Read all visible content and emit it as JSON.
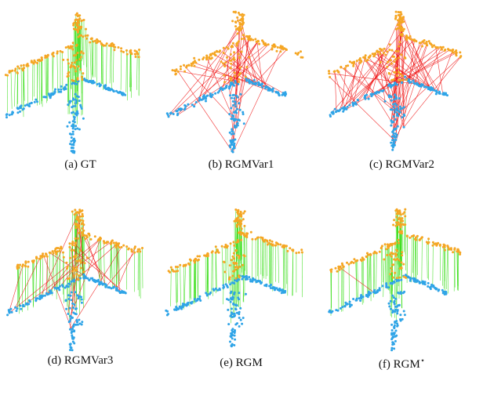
{
  "colors": {
    "source_points": "#f5a623",
    "target_points": "#2fa4e7",
    "correct_match": "#33dd11",
    "wrong_match": "#ee1111"
  },
  "panels": [
    {
      "id": "a",
      "caption": "(a) GT",
      "correct_fraction": 1.0,
      "wrong_fraction": 0.0
    },
    {
      "id": "b",
      "caption": "(b) RGMVar1",
      "correct_fraction": 0.0,
      "wrong_fraction": 0.35
    },
    {
      "id": "c",
      "caption": "(c) RGMVar2",
      "correct_fraction": 0.0,
      "wrong_fraction": 0.8
    },
    {
      "id": "d",
      "caption": "(d) RGMVar3",
      "correct_fraction": 0.75,
      "wrong_fraction": 0.2
    },
    {
      "id": "e",
      "caption": "(e) RGM",
      "correct_fraction": 0.95,
      "wrong_fraction": 0.0
    },
    {
      "id": "f",
      "caption": "(f) RGM",
      "caption_sup": "⋆",
      "correct_fraction": 0.92,
      "wrong_fraction": 0.03
    }
  ]
}
